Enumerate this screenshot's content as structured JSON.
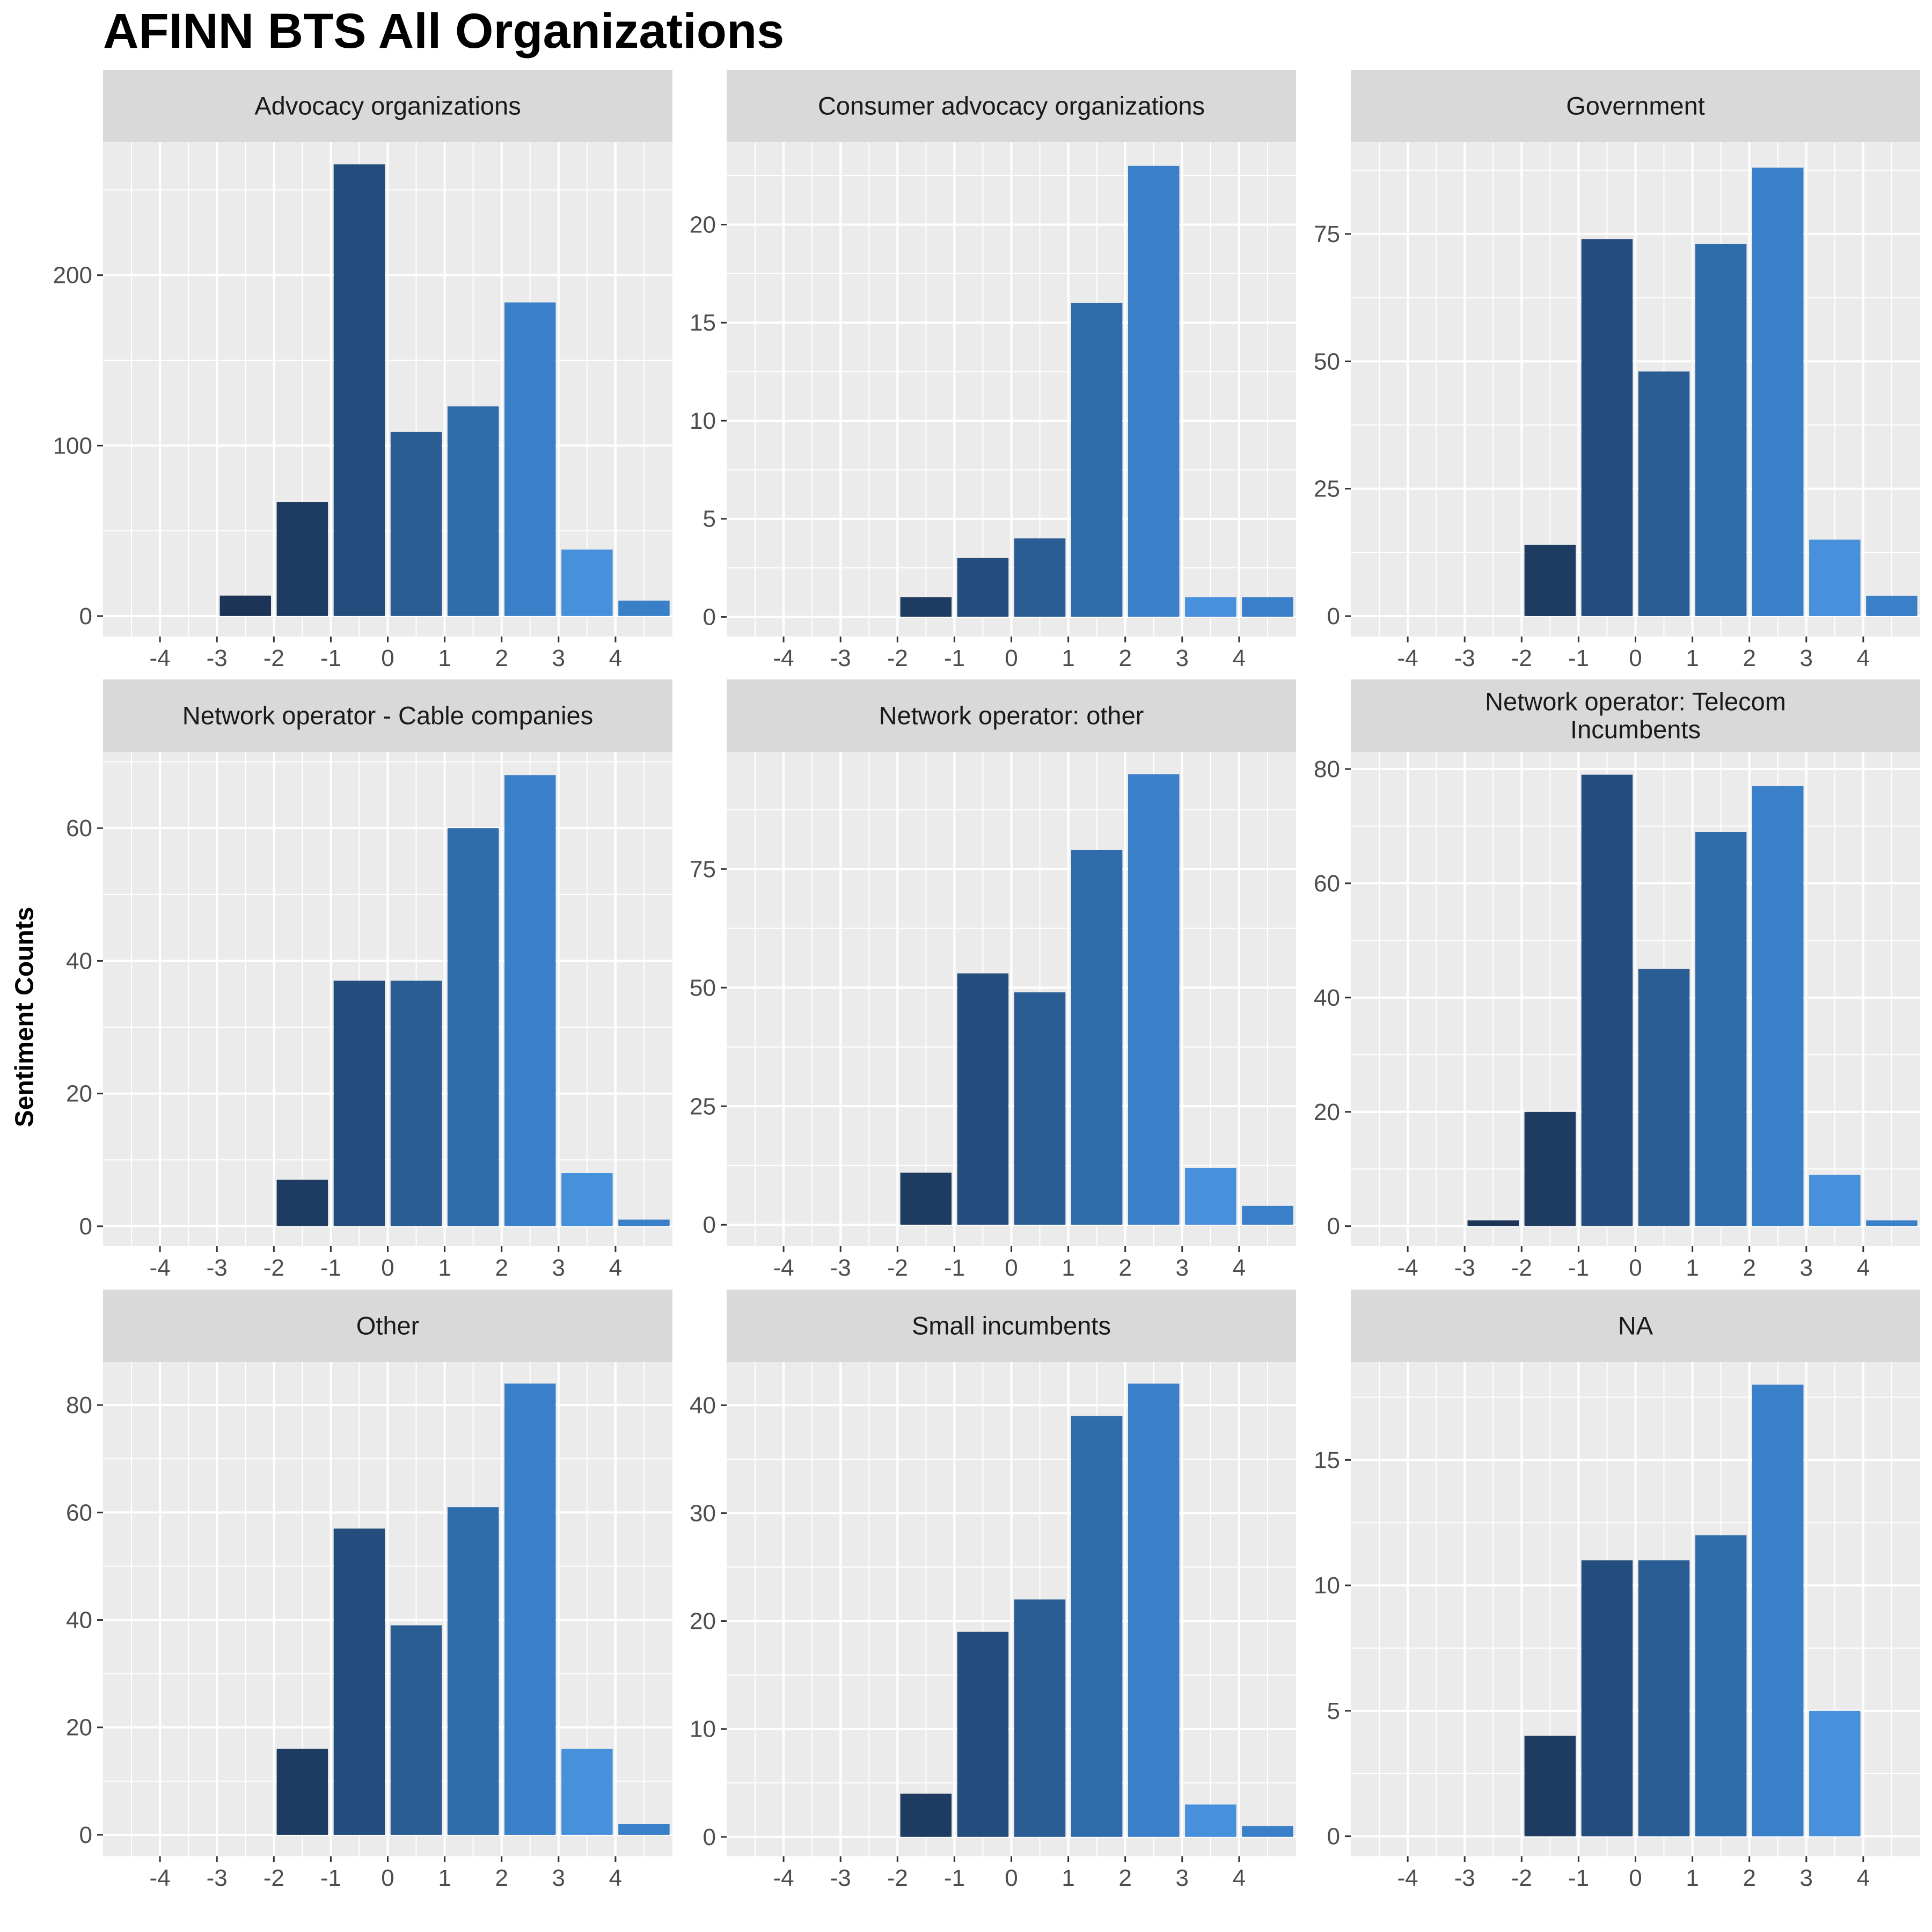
{
  "chart_data": {
    "type": "bar",
    "title": "AFINN BTS All Organizations",
    "xlabel": "",
    "ylabel": "Sentiment Counts",
    "x": [
      -4,
      -3,
      -2,
      -1,
      0,
      1,
      2,
      3,
      4
    ],
    "x_tick_labels": [
      "-4",
      "-3",
      "-2",
      "-1",
      "0",
      "1",
      "2",
      "3",
      "4"
    ],
    "xlim": [
      -5,
      5
    ],
    "grid": true,
    "legend": "none",
    "colors": {
      "-4": "#1b2d4c",
      "-3": "#1c3456",
      "-2": "#1e3b62",
      "-1": "#234d7c",
      "0": "#2a5d93",
      "1": "#2f6cab",
      "2": "#3a80c8",
      "3": "#4690dc"
    },
    "panels": [
      {
        "name": "Advocacy organizations",
        "values": [
          null,
          12,
          67,
          265,
          108,
          123,
          184,
          39,
          9
        ],
        "ylim": [
          -12,
          278
        ],
        "y_ticks": [
          0,
          100,
          200
        ],
        "y_tick_labels": [
          "0",
          "100",
          "200"
        ]
      },
      {
        "name": "Consumer advocacy organizations",
        "values": [
          null,
          null,
          1,
          3,
          4,
          16,
          23,
          1,
          1
        ],
        "ylim": [
          -1,
          24.2
        ],
        "y_ticks": [
          0,
          5,
          10,
          15,
          20
        ],
        "y_tick_labels": [
          "0",
          "5",
          "10",
          "15",
          "20"
        ]
      },
      {
        "name": "Government",
        "values": [
          null,
          null,
          14,
          74,
          48,
          73,
          88,
          15,
          4
        ],
        "ylim": [
          -4,
          93
        ],
        "y_ticks": [
          0,
          25,
          50,
          75
        ],
        "y_tick_labels": [
          "0",
          "25",
          "50",
          "75"
        ]
      },
      {
        "name": "Network operator - Cable companies",
        "values": [
          null,
          null,
          7,
          37,
          37,
          60,
          68,
          8,
          1
        ],
        "ylim": [
          -3,
          71.5
        ],
        "y_ticks": [
          0,
          20,
          40,
          60
        ],
        "y_tick_labels": [
          "0",
          "20",
          "40",
          "60"
        ]
      },
      {
        "name": "Network operator: other",
        "values": [
          null,
          null,
          11,
          53,
          49,
          79,
          95,
          12,
          4
        ],
        "ylim": [
          -4.5,
          99.7
        ],
        "y_ticks": [
          0,
          25,
          50,
          75
        ],
        "y_tick_labels": [
          "0",
          "25",
          "50",
          "75"
        ]
      },
      {
        "name": "Network operator: Telecom Incumbents",
        "name_lines": [
          "Network operator: Telecom",
          "Incumbents"
        ],
        "values": [
          null,
          1,
          20,
          79,
          45,
          69,
          77,
          9,
          1
        ],
        "ylim": [
          -3.5,
          83
        ],
        "y_ticks": [
          0,
          20,
          40,
          60,
          80
        ],
        "y_tick_labels": [
          "0",
          "20",
          "40",
          "60",
          "80"
        ]
      },
      {
        "name": "Other",
        "values": [
          null,
          null,
          16,
          57,
          39,
          61,
          84,
          16,
          2
        ],
        "ylim": [
          -4,
          88
        ],
        "y_ticks": [
          0,
          20,
          40,
          60,
          80
        ],
        "y_tick_labels": [
          "0",
          "20",
          "40",
          "60",
          "80"
        ]
      },
      {
        "name": "Small incumbents",
        "values": [
          null,
          null,
          4,
          19,
          22,
          39,
          42,
          3,
          1
        ],
        "ylim": [
          -1.8,
          44
        ],
        "y_ticks": [
          0,
          10,
          20,
          30,
          40
        ],
        "y_tick_labels": [
          "0",
          "10",
          "20",
          "30",
          "40"
        ]
      },
      {
        "name": "NA",
        "values": [
          null,
          null,
          4,
          11,
          11,
          12,
          18,
          5,
          null
        ],
        "ylim": [
          -0.8,
          18.9
        ],
        "y_ticks": [
          0,
          5,
          10,
          15
        ],
        "y_tick_labels": [
          "0",
          "5",
          "10",
          "15"
        ]
      }
    ]
  }
}
